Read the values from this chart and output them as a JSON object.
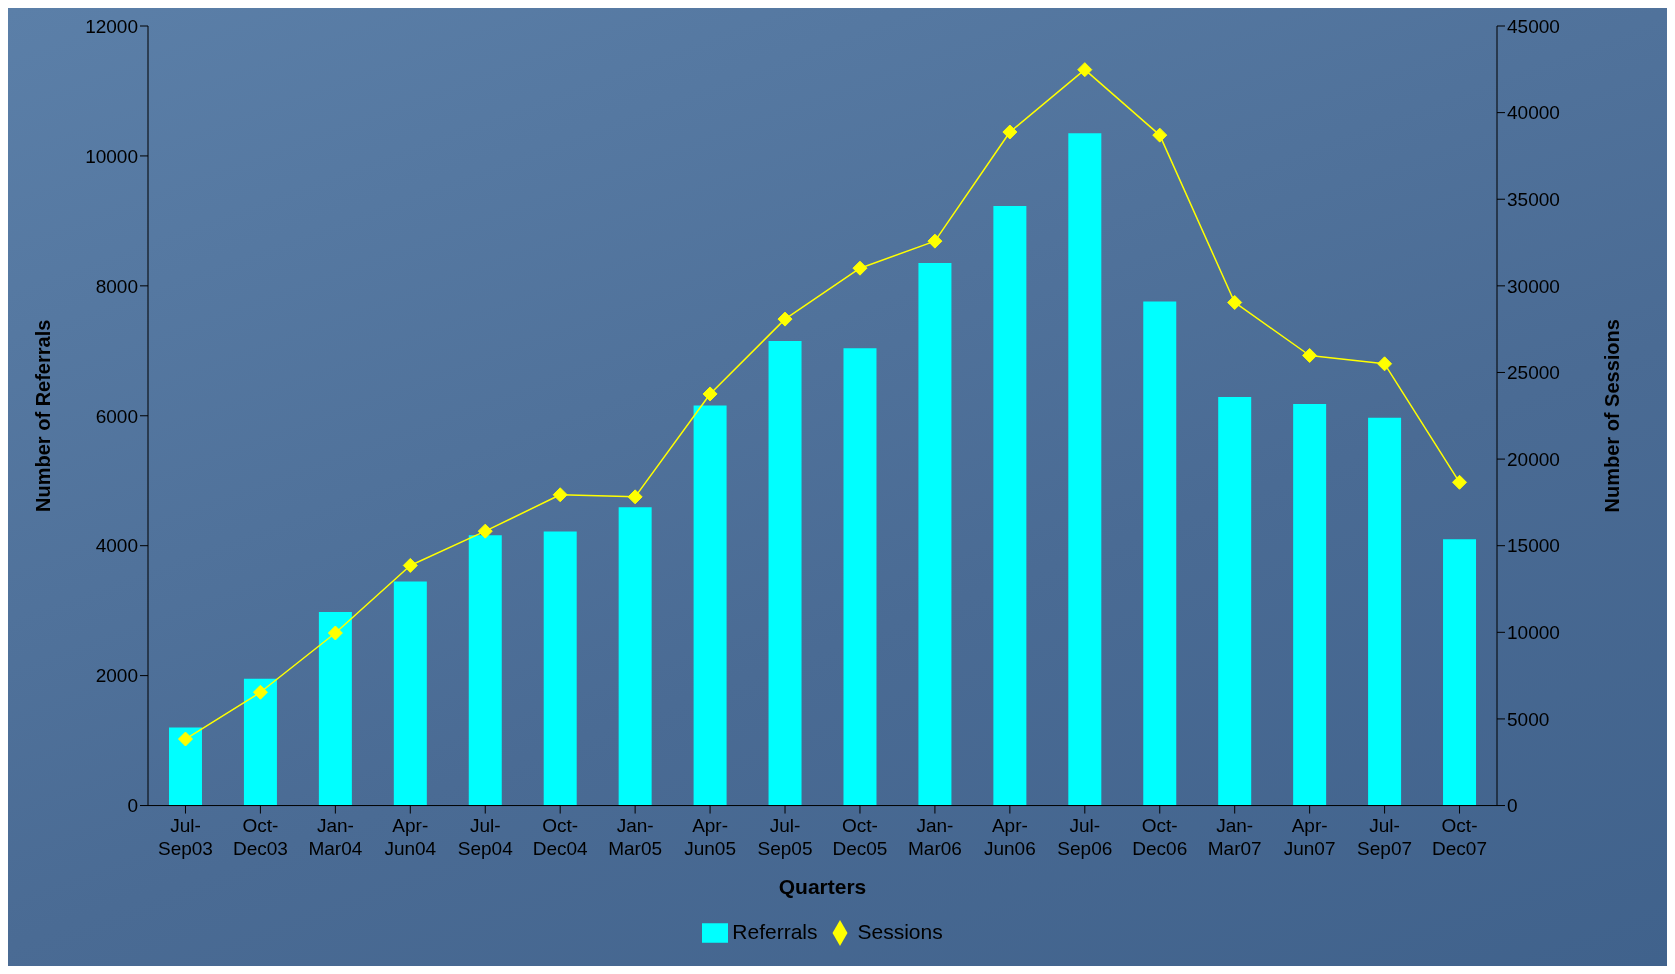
{
  "chart_data": {
    "type": "bar",
    "xlabel": "Quarters",
    "ylabel": "Number of Referrals",
    "y2label": "Number of Sessions",
    "categories": [
      "Jul-Sep03",
      "Oct-Dec03",
      "Jan-Mar04",
      "Apr-Jun04",
      "Jul-Sep04",
      "Oct-Dec04",
      "Jan-Mar05",
      "Apr-Jun05",
      "Jul-Sep05",
      "Oct-Dec05",
      "Jan-Mar06",
      "Apr-Jun06",
      "Jul-Sep06",
      "Oct-Dec06",
      "Jan-Mar07",
      "Apr-Jun07",
      "Jul-Sep07",
      "Oct-Dec07"
    ],
    "series": [
      {
        "name": "Referrals",
        "color": "#00ffff",
        "values": [
          1200,
          1950,
          2980,
          3450,
          4160,
          4220,
          4590,
          6160,
          7150,
          7040,
          8350,
          9230,
          10350,
          7760,
          6290,
          6180,
          5970,
          4100
        ]
      },
      {
        "name": "Sessions",
        "type": "line",
        "axis": "y2",
        "color": "#ffff00",
        "marker": "diamond",
        "values": [
          3840,
          6540,
          9960,
          13860,
          15840,
          17940,
          17820,
          23760,
          28080,
          31020,
          32580,
          38880,
          42480,
          38700,
          29040,
          25980,
          25500,
          18660
        ]
      }
    ],
    "ylim": [
      0,
      12000
    ],
    "yticks": [
      0,
      2000,
      4000,
      6000,
      8000,
      10000,
      12000
    ],
    "y2lim": [
      0,
      45000
    ],
    "y2ticks": [
      0,
      5000,
      10000,
      15000,
      20000,
      25000,
      30000,
      35000,
      40000,
      45000
    ],
    "grid": false,
    "legend": "bottom"
  }
}
